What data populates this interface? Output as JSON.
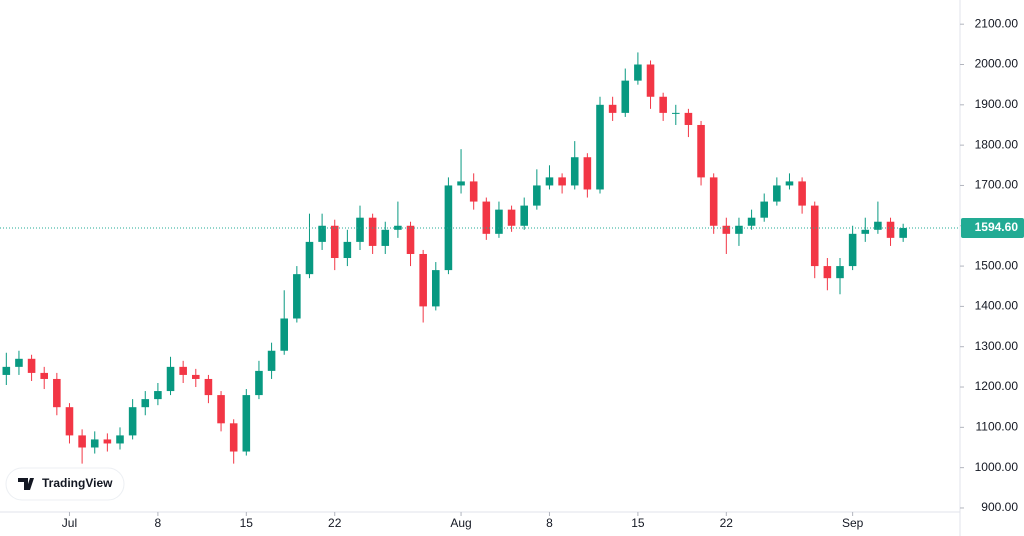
{
  "chart_data": {
    "type": "candlestick",
    "x": [
      -5,
      -4,
      -3,
      -2,
      -1,
      0,
      1,
      2,
      3,
      4,
      5,
      6,
      7,
      8,
      9,
      10,
      11,
      12,
      13,
      14,
      15,
      16,
      17,
      18,
      19,
      20,
      21,
      22,
      23,
      24,
      25,
      26,
      27,
      28,
      29,
      30,
      31,
      32,
      33,
      34,
      35,
      36,
      37,
      38,
      39,
      40,
      41,
      42,
      43,
      44,
      45,
      46,
      47,
      48,
      49,
      50,
      51,
      52,
      53,
      54,
      55,
      56,
      57,
      58,
      59,
      60,
      61,
      62,
      63,
      64,
      65,
      66
    ],
    "open": [
      1230,
      1250,
      1270,
      1235,
      1220,
      1150,
      1080,
      1050,
      1070,
      1060,
      1080,
      1150,
      1170,
      1190,
      1250,
      1230,
      1220,
      1180,
      1110,
      1040,
      1180,
      1240,
      1290,
      1370,
      1480,
      1560,
      1600,
      1520,
      1560,
      1620,
      1550,
      1590,
      1600,
      1530,
      1400,
      1490,
      1700,
      1710,
      1660,
      1580,
      1640,
      1600,
      1650,
      1700,
      1720,
      1700,
      1770,
      1690,
      1900,
      1880,
      1960,
      2000,
      1920,
      1880,
      1880,
      1850,
      1720,
      1600,
      1580,
      1600,
      1620,
      1660,
      1700,
      1710,
      1650,
      1500,
      1470,
      1500,
      1580,
      1590,
      1610,
      1570
    ],
    "high": [
      1285,
      1290,
      1280,
      1250,
      1235,
      1160,
      1095,
      1090,
      1085,
      1100,
      1170,
      1190,
      1210,
      1275,
      1265,
      1245,
      1230,
      1190,
      1120,
      1195,
      1265,
      1310,
      1440,
      1500,
      1630,
      1630,
      1615,
      1590,
      1650,
      1630,
      1610,
      1660,
      1610,
      1540,
      1510,
      1720,
      1790,
      1730,
      1670,
      1660,
      1650,
      1670,
      1740,
      1750,
      1730,
      1810,
      1780,
      1920,
      1920,
      1990,
      2030,
      2010,
      1930,
      1900,
      1890,
      1860,
      1730,
      1620,
      1620,
      1640,
      1680,
      1720,
      1730,
      1720,
      1660,
      1520,
      1520,
      1600,
      1620,
      1660,
      1620,
      1605
    ],
    "low": [
      1205,
      1230,
      1215,
      1195,
      1130,
      1060,
      1010,
      1035,
      1040,
      1045,
      1070,
      1130,
      1155,
      1180,
      1210,
      1200,
      1160,
      1090,
      1010,
      1030,
      1170,
      1220,
      1280,
      1360,
      1470,
      1540,
      1490,
      1500,
      1540,
      1530,
      1530,
      1570,
      1500,
      1360,
      1390,
      1480,
      1680,
      1640,
      1565,
      1570,
      1585,
      1590,
      1640,
      1690,
      1680,
      1690,
      1670,
      1680,
      1860,
      1870,
      1950,
      1890,
      1860,
      1850,
      1820,
      1700,
      1580,
      1530,
      1550,
      1590,
      1610,
      1650,
      1690,
      1630,
      1470,
      1440,
      1430,
      1490,
      1560,
      1580,
      1550,
      1560
    ],
    "close": [
      1250,
      1270,
      1235,
      1220,
      1150,
      1080,
      1050,
      1070,
      1060,
      1080,
      1150,
      1170,
      1190,
      1250,
      1230,
      1220,
      1180,
      1110,
      1040,
      1180,
      1240,
      1290,
      1370,
      1480,
      1560,
      1600,
      1520,
      1560,
      1620,
      1550,
      1590,
      1600,
      1530,
      1400,
      1490,
      1700,
      1710,
      1660,
      1580,
      1640,
      1600,
      1650,
      1700,
      1720,
      1700,
      1770,
      1690,
      1900,
      1880,
      1960,
      2000,
      1920,
      1880,
      1880,
      1850,
      1720,
      1600,
      1580,
      1600,
      1620,
      1660,
      1700,
      1710,
      1650,
      1500,
      1470,
      1500,
      1580,
      1590,
      1610,
      1570,
      1594.6
    ],
    "up_color": "#089981",
    "down_color": "#f23645",
    "xlim": [
      -5.5,
      70.5
    ],
    "xticks": [
      {
        "value": 0,
        "label": "Jul"
      },
      {
        "value": 7,
        "label": "8"
      },
      {
        "value": 14,
        "label": "15"
      },
      {
        "value": 21,
        "label": "22"
      },
      {
        "value": 31,
        "label": "Aug"
      },
      {
        "value": 38,
        "label": "8"
      },
      {
        "value": 45,
        "label": "15"
      },
      {
        "value": 52,
        "label": "22"
      },
      {
        "value": 62,
        "label": "Sep"
      }
    ],
    "ylim": [
      890,
      2160
    ],
    "yticks": [
      {
        "value": 900,
        "label": "900.00"
      },
      {
        "value": 1000,
        "label": "1000.00"
      },
      {
        "value": 1100,
        "label": "1100.00"
      },
      {
        "value": 1200,
        "label": "1200.00"
      },
      {
        "value": 1300,
        "label": "1300.00"
      },
      {
        "value": 1400,
        "label": "1400.00"
      },
      {
        "value": 1500,
        "label": "1500.00"
      },
      {
        "value": 1600,
        "label": "1600.00"
      },
      {
        "value": 1700,
        "label": "1700.00"
      },
      {
        "value": 1800,
        "label": "1800.00"
      },
      {
        "value": 1900,
        "label": "1900.00"
      },
      {
        "value": 2000,
        "label": "2000.00"
      },
      {
        "value": 2100,
        "label": "2100.00"
      }
    ],
    "last_price": {
      "value": 1594.6,
      "label": "1594.60"
    },
    "last_price_color": "#22ab94",
    "watermark": "TradingView"
  }
}
